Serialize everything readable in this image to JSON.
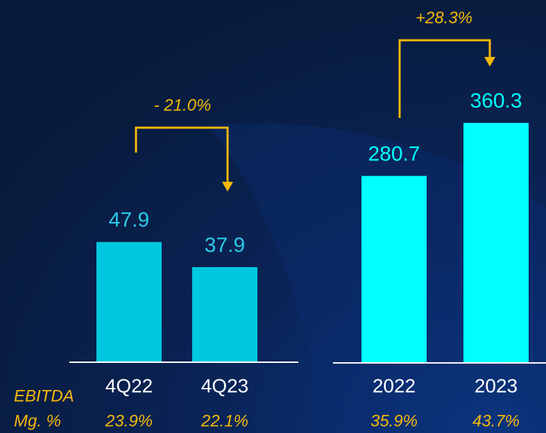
{
  "row_labels": [
    "EBITDA",
    "Mg. %"
  ],
  "chart_data": [
    {
      "type": "bar",
      "categories": [
        "4Q22",
        "4Q23"
      ],
      "values": [
        47.9,
        37.9
      ],
      "color": "#00c8e0",
      "label_color": "#2ccbe8",
      "ylim": [
        0,
        60
      ],
      "margin_labels": [
        "23.9%",
        "22.1%"
      ],
      "annotation": "- 21.0%"
    },
    {
      "type": "bar",
      "categories": [
        "2022",
        "2023"
      ],
      "values": [
        280.7,
        360.3
      ],
      "color": "#00ffff",
      "label_color": "#00ffff",
      "ylim": [
        0,
        400
      ],
      "margin_labels": [
        "35.9%",
        "43.7%"
      ],
      "annotation": "+28.3%"
    }
  ]
}
